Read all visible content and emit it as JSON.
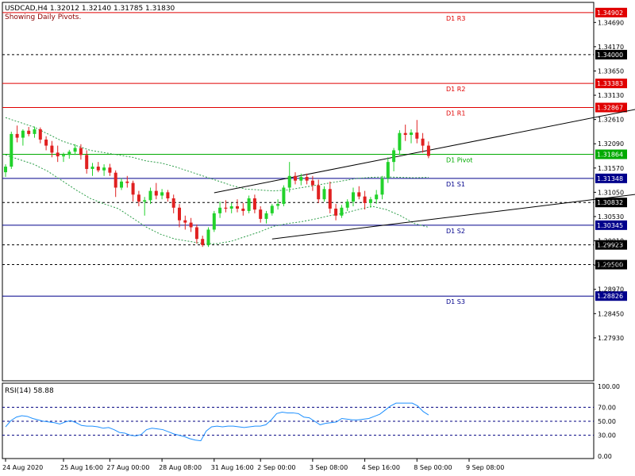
{
  "header": {
    "symbol_line": "USDCAD,H4  1.32012 1.32140 1.31785 1.31830",
    "subtitle": "Showing Daily Pivots."
  },
  "colors": {
    "bull": "#22d22b",
    "bear": "#e02020",
    "pivot_red": "#e00000",
    "pivot_blue": "#00008b",
    "pivot_green": "#00aa00",
    "bands": "#2e9e4a",
    "rsi_line": "#1e90ff",
    "channel": "#000000"
  },
  "chart_data": {
    "type": "candlestick",
    "price_axis": {
      "range": [
        1.2701,
        1.3512
      ],
      "ticks": [
        "1.34690",
        "1.34170",
        "1.33650",
        "1.33130",
        "1.32610",
        "1.32090",
        "1.31570",
        "1.31050",
        "1.30530",
        "1.30010",
        "1.29490",
        "1.28970",
        "1.28450",
        "1.27930"
      ]
    },
    "time_axis": {
      "labels": [
        "24 Aug 2020",
        "25 Aug 16:00",
        "27 Aug 00:00",
        "28 Aug 08:00",
        "31 Aug 16:00",
        "2 Sep 00:00",
        "3 Sep 08:00",
        "4 Sep 16:00",
        "8 Sep 00:00",
        "9 Sep 08:00"
      ],
      "label_bar_index": [
        0,
        10,
        18,
        27,
        36,
        44,
        53,
        62,
        71,
        80
      ]
    },
    "candles": [
      [
        1.3148,
        1.3165,
        1.3138,
        1.316
      ],
      [
        1.316,
        1.3235,
        1.3155,
        1.323
      ],
      [
        1.323,
        1.3248,
        1.3212,
        1.3222
      ],
      [
        1.3222,
        1.324,
        1.3205,
        1.3237
      ],
      [
        1.3237,
        1.3245,
        1.3225,
        1.323
      ],
      [
        1.323,
        1.3246,
        1.3222,
        1.324
      ],
      [
        1.324,
        1.3244,
        1.321,
        1.3218
      ],
      [
        1.3218,
        1.3225,
        1.3195,
        1.3205
      ],
      [
        1.3205,
        1.3215,
        1.318,
        1.319
      ],
      [
        1.319,
        1.3205,
        1.317,
        1.3182
      ],
      [
        1.3182,
        1.319,
        1.317,
        1.3185
      ],
      [
        1.3185,
        1.3196,
        1.3177,
        1.3192
      ],
      [
        1.3192,
        1.3208,
        1.3185,
        1.32
      ],
      [
        1.32,
        1.3208,
        1.3175,
        1.3185
      ],
      [
        1.3185,
        1.3195,
        1.3145,
        1.3155
      ],
      [
        1.3155,
        1.3168,
        1.314,
        1.316
      ],
      [
        1.316,
        1.317,
        1.3148,
        1.3152
      ],
      [
        1.3152,
        1.3165,
        1.314,
        1.3158
      ],
      [
        1.3158,
        1.3166,
        1.314,
        1.3147
      ],
      [
        1.3147,
        1.3152,
        1.3095,
        1.3115
      ],
      [
        1.3115,
        1.3135,
        1.311,
        1.3128
      ],
      [
        1.3128,
        1.314,
        1.3115,
        1.3125
      ],
      [
        1.3125,
        1.313,
        1.3085,
        1.31
      ],
      [
        1.31,
        1.3108,
        1.3075,
        1.3085
      ],
      [
        1.3085,
        1.3095,
        1.3055,
        1.3088
      ],
      [
        1.3088,
        1.3115,
        1.308,
        1.3108
      ],
      [
        1.3108,
        1.3125,
        1.309,
        1.3098
      ],
      [
        1.3098,
        1.3112,
        1.309,
        1.3105
      ],
      [
        1.3105,
        1.311,
        1.3085,
        1.3092
      ],
      [
        1.3092,
        1.31,
        1.306,
        1.3072
      ],
      [
        1.3072,
        1.308,
        1.303,
        1.3045
      ],
      [
        1.3045,
        1.3055,
        1.3025,
        1.304
      ],
      [
        1.304,
        1.305,
        1.302,
        1.303
      ],
      [
        1.303,
        1.3036,
        1.2995,
        1.3005
      ],
      [
        1.3005,
        1.3012,
        1.2988,
        1.2992
      ],
      [
        1.2992,
        1.303,
        1.2988,
        1.3025
      ],
      [
        1.3025,
        1.3065,
        1.302,
        1.306
      ],
      [
        1.306,
        1.3085,
        1.305,
        1.3072
      ],
      [
        1.3072,
        1.3088,
        1.3062,
        1.307
      ],
      [
        1.307,
        1.3082,
        1.306,
        1.3075
      ],
      [
        1.3075,
        1.309,
        1.3062,
        1.307
      ],
      [
        1.307,
        1.3082,
        1.3055,
        1.3065
      ],
      [
        1.3065,
        1.3098,
        1.306,
        1.3092
      ],
      [
        1.3092,
        1.31,
        1.306,
        1.3068
      ],
      [
        1.3068,
        1.3075,
        1.304,
        1.3048
      ],
      [
        1.3048,
        1.3065,
        1.3038,
        1.306
      ],
      [
        1.306,
        1.308,
        1.3055,
        1.3076
      ],
      [
        1.3076,
        1.309,
        1.3068,
        1.308
      ],
      [
        1.308,
        1.312,
        1.3075,
        1.3115
      ],
      [
        1.3115,
        1.317,
        1.3105,
        1.314
      ],
      [
        1.314,
        1.3148,
        1.3122,
        1.313
      ],
      [
        1.313,
        1.3145,
        1.312,
        1.3138
      ],
      [
        1.3138,
        1.3145,
        1.3122,
        1.313
      ],
      [
        1.313,
        1.314,
        1.3108,
        1.312
      ],
      [
        1.312,
        1.3132,
        1.3082,
        1.309
      ],
      [
        1.309,
        1.3118,
        1.3085,
        1.3112
      ],
      [
        1.3112,
        1.3128,
        1.306,
        1.307
      ],
      [
        1.307,
        1.308,
        1.3045,
        1.3055
      ],
      [
        1.3055,
        1.3078,
        1.305,
        1.3072
      ],
      [
        1.3072,
        1.309,
        1.3065,
        1.3085
      ],
      [
        1.3085,
        1.3115,
        1.3075,
        1.3105
      ],
      [
        1.3105,
        1.3118,
        1.309,
        1.3096
      ],
      [
        1.3096,
        1.3108,
        1.3068,
        1.3082
      ],
      [
        1.3082,
        1.3095,
        1.3072,
        1.309
      ],
      [
        1.309,
        1.311,
        1.308,
        1.31
      ],
      [
        1.31,
        1.314,
        1.309,
        1.3135
      ],
      [
        1.3135,
        1.318,
        1.3125,
        1.317
      ],
      [
        1.317,
        1.32,
        1.315,
        1.3195
      ],
      [
        1.3195,
        1.3238,
        1.3185,
        1.3232
      ],
      [
        1.3232,
        1.325,
        1.3215,
        1.3228
      ],
      [
        1.3228,
        1.324,
        1.321,
        1.3233
      ],
      [
        1.3233,
        1.326,
        1.321,
        1.322
      ],
      [
        1.322,
        1.3232,
        1.319,
        1.3205
      ],
      [
        1.3205,
        1.3214,
        1.3178,
        1.3183
      ]
    ],
    "pivots": [
      {
        "name": "D1 R3",
        "value": 1.34902,
        "label": "1.34902",
        "color": "pivot_red"
      },
      {
        "name": "",
        "value": 1.34,
        "label": "1.34000",
        "color": "dotted"
      },
      {
        "name": "D1 R2",
        "value": 1.33383,
        "label": "1.33383",
        "color": "pivot_red"
      },
      {
        "name": "D1 R1",
        "value": 1.32867,
        "label": "1.32867",
        "color": "pivot_red"
      },
      {
        "name": "D1 Pivot",
        "value": 1.31864,
        "label": "1.31864",
        "color": "pivot_green"
      },
      {
        "name": "D1 S1",
        "value": 1.31348,
        "label": "1.31348",
        "color": "pivot_blue"
      },
      {
        "name": "",
        "value": 1.30832,
        "label": "1.30832",
        "color": "dotted"
      },
      {
        "name": "D1 S2",
        "value": 1.30345,
        "label": "1.30345",
        "color": "pivot_blue"
      },
      {
        "name": "",
        "value": 1.29923,
        "label": "1.29923",
        "color": "dotted"
      },
      {
        "name": "",
        "value": 1.295,
        "label": "1.29500",
        "color": "dotted"
      },
      {
        "name": "D1 S3",
        "value": 1.28826,
        "label": "1.28826",
        "color": "pivot_blue"
      }
    ],
    "channel": {
      "upper": [
        [
          36,
          1.3104
        ],
        [
          132,
          1.334
        ]
      ],
      "lower": [
        [
          46,
          1.3005
        ],
        [
          132,
          1.3136
        ]
      ]
    },
    "bollinger": {
      "upper": [
        1.3265,
        1.3255,
        1.3245,
        1.323,
        1.3215,
        1.3205,
        1.3195,
        1.319,
        1.3185,
        1.318,
        1.3172,
        1.3168,
        1.316,
        1.315,
        1.314,
        1.313,
        1.312,
        1.3112,
        1.311,
        1.3108,
        1.311,
        1.3115,
        1.312,
        1.3125,
        1.313,
        1.3135,
        1.3137,
        1.3138,
        1.3137,
        1.3136,
        1.3137
      ],
      "lower": [
        1.3185,
        1.3175,
        1.3165,
        1.315,
        1.313,
        1.311,
        1.3092,
        1.308,
        1.307,
        1.305,
        1.303,
        1.3015,
        1.3005,
        1.3,
        1.2995,
        1.2995,
        1.3,
        1.301,
        1.302,
        1.3032,
        1.3038,
        1.3042,
        1.3048,
        1.3055,
        1.306,
        1.3068,
        1.3075,
        1.3068,
        1.3055,
        1.3038,
        1.303
      ]
    },
    "rsi": {
      "label": "RSI(14) 58.88",
      "levels": [
        70,
        50,
        30
      ],
      "ticks": [
        "100.00",
        "70.00",
        "50.00",
        "30.00",
        "0.00"
      ],
      "range": [
        0,
        100
      ],
      "values": [
        42,
        51,
        56,
        58,
        57,
        54,
        52,
        50,
        49,
        48,
        46,
        49,
        51,
        48,
        44,
        43,
        43,
        42,
        40,
        41,
        38,
        34,
        33,
        30,
        29,
        31,
        38,
        40,
        39,
        38,
        35,
        32,
        30,
        28,
        25,
        23,
        22,
        36,
        42,
        43,
        42,
        43,
        43,
        42,
        41,
        42,
        43,
        43,
        45,
        52,
        61,
        63,
        62,
        62,
        61,
        56,
        55,
        50,
        45,
        47,
        48,
        49,
        54,
        53,
        52,
        52,
        53,
        54,
        57,
        60,
        66,
        72,
        76,
        76,
        76,
        76,
        72,
        64,
        59
      ]
    }
  }
}
